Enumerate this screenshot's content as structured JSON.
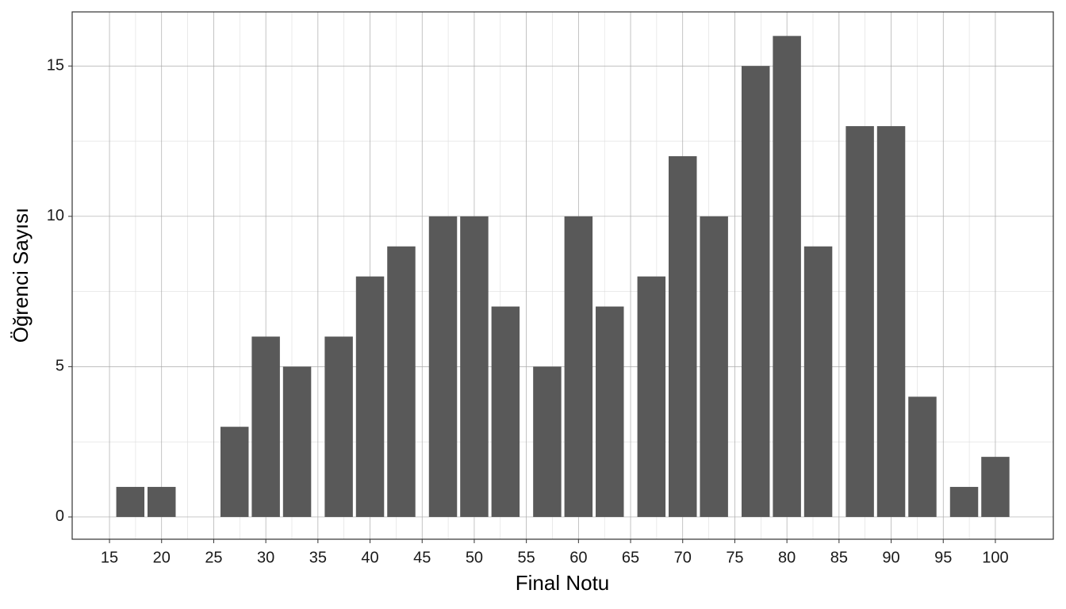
{
  "chart_data": {
    "type": "bar",
    "x_label": "Final Notu",
    "y_label": "Öğrenci Sayısı",
    "x": [
      17,
      20,
      27,
      30,
      33,
      37,
      40,
      43,
      47,
      50,
      53,
      57,
      60,
      63,
      67,
      70,
      73,
      77,
      80,
      83,
      87,
      90,
      93,
      97,
      100
    ],
    "values": [
      1,
      1,
      3,
      6,
      5,
      6,
      8,
      9,
      10,
      10,
      7,
      5,
      10,
      7,
      8,
      12,
      10,
      15,
      16,
      9,
      13,
      13,
      4,
      1,
      2
    ],
    "bar_width": 2.7,
    "color": "#595959",
    "xlim": [
      11.42,
      105.56
    ],
    "xticks": [
      15,
      20,
      25,
      30,
      35,
      40,
      45,
      50,
      55,
      60,
      65,
      70,
      75,
      80,
      85,
      90,
      95,
      100
    ],
    "ylim": [
      -0.74,
      16.8
    ],
    "yticks": [
      0,
      5,
      10,
      15
    ],
    "grid": true
  }
}
